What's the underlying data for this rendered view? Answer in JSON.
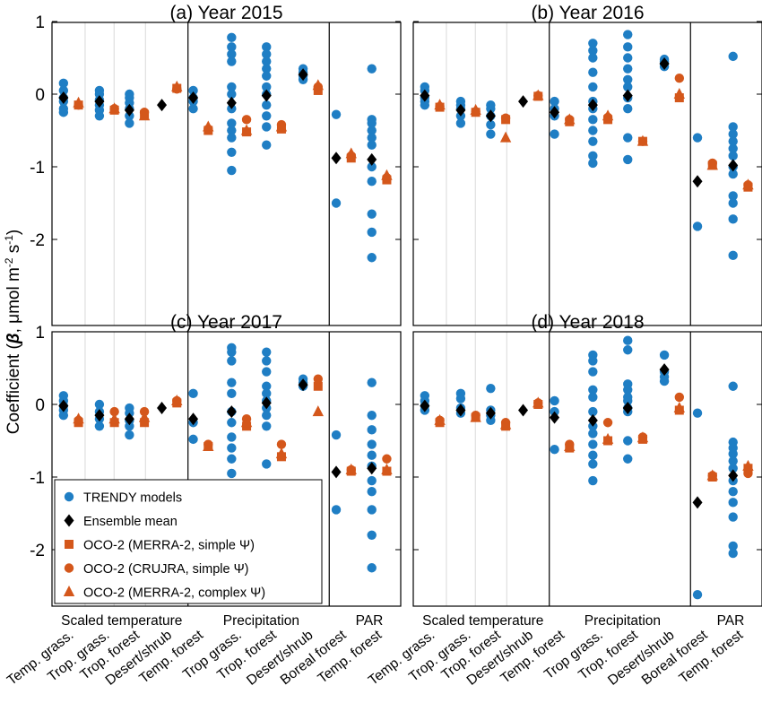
{
  "figure": {
    "ylabel": "Coefficient (β, μmol m⁻² s⁻¹)",
    "ylabel_main": "Coefficient (",
    "ylabel_beta": "β",
    "ylabel_unit": ", μmol m",
    "ylabel_sup1": "-2",
    "ylabel_s": " s",
    "ylabel_sup2": "-1",
    "ylabel_close": ")",
    "yticks": [
      "1",
      "0",
      "-1",
      "-2"
    ],
    "groups": [
      "Scaled temperature",
      "Precipitation",
      "PAR"
    ],
    "categories": [
      "Temp. grass.",
      "Trop. grass.",
      "Trop. forest",
      "Desert/shrub",
      "Temp. forest",
      "Trop grass.",
      "Trop. forest",
      "Desert/shrub",
      "Boreal forest",
      "Temp. forest"
    ],
    "colors": {
      "trendy": "#1f7ec4",
      "ensemble": "#000000",
      "oco": "#d4571b"
    }
  },
  "legend": {
    "items": [
      {
        "label": "TRENDY models",
        "marker": "circle",
        "color": "#1f7ec4"
      },
      {
        "label": "Ensemble mean",
        "marker": "diamond",
        "color": "#000000"
      },
      {
        "label": "OCO-2 (MERRA-2, simple Ψ)",
        "marker": "square",
        "color": "#d4571b"
      },
      {
        "label": "OCO-2 (CRUJRA, simple Ψ)",
        "marker": "circle",
        "color": "#d4571b"
      },
      {
        "label": "OCO-2 (MERRA-2, complex Ψ)",
        "marker": "triangle",
        "color": "#d4571b"
      }
    ]
  },
  "chart_data": [
    {
      "type": "scatter",
      "title": "(a) Year 2015",
      "ylim": [
        -2.8,
        1
      ],
      "trendy": [
        [
          0.15,
          0.05,
          -0.05,
          -0.1,
          -0.2,
          -0.25
        ],
        [
          0.05,
          0.0,
          -0.08,
          -0.15,
          -0.22,
          -0.3
        ],
        [
          0.0,
          -0.05,
          -0.12,
          -0.2,
          -0.3,
          -0.4
        ],
        [],
        [
          0.05,
          -0.05,
          -0.1,
          -0.2
        ],
        [
          0.78,
          0.65,
          0.55,
          0.45,
          0.1,
          0.0,
          -0.2,
          -0.4,
          -0.5,
          -0.6,
          -0.8,
          -1.05
        ],
        [
          0.65,
          0.55,
          0.45,
          0.35,
          0.25,
          0.1,
          0.0,
          -0.15,
          -0.3,
          -0.45,
          -0.7
        ],
        [
          0.35,
          0.3,
          0.25,
          0.2
        ],
        [
          -0.28,
          -1.5
        ],
        [
          0.35,
          -0.35,
          -0.4,
          -0.5,
          -0.6,
          -0.7,
          -1.0,
          -1.2,
          -1.65,
          -1.9,
          -2.25
        ]
      ],
      "ensemble": [
        -0.05,
        -0.1,
        -0.22,
        -0.15,
        -0.05,
        -0.12,
        -0.02,
        0.27,
        -0.88,
        -0.9
      ],
      "oco_merra_simple": [
        -0.15,
        -0.22,
        -0.28,
        0.08,
        -0.5,
        -0.52,
        -0.48,
        0.05,
        -0.88,
        -1.18
      ],
      "oco_crujra_simple": [
        -0.15,
        -0.2,
        -0.25,
        0.07,
        -0.48,
        -0.35,
        -0.42,
        0.1,
        -0.85,
        -1.15
      ],
      "oco_merra_complex": [
        -0.12,
        -0.2,
        -0.3,
        0.1,
        -0.45,
        -0.5,
        -0.45,
        0.12,
        -0.82,
        -1.12
      ]
    },
    {
      "type": "scatter",
      "title": "(b) Year 2016",
      "ylim": [
        -2.8,
        1
      ],
      "trendy": [
        [
          0.1,
          0.05,
          -0.05,
          -0.1,
          -0.15
        ],
        [
          -0.1,
          -0.15,
          -0.2,
          -0.3,
          -0.4
        ],
        [
          -0.15,
          -0.2,
          -0.3,
          -0.42,
          -0.55
        ],
        [],
        [
          -0.1,
          -0.2,
          -0.3,
          -0.55
        ],
        [
          0.7,
          0.6,
          0.5,
          0.3,
          0.1,
          -0.1,
          -0.2,
          -0.35,
          -0.5,
          -0.65,
          -0.85,
          -0.95
        ],
        [
          0.82,
          0.65,
          0.5,
          0.35,
          0.2,
          0.1,
          -0.05,
          -0.2,
          -0.6,
          -0.9
        ],
        [
          0.48,
          0.45,
          0.42,
          0.38
        ],
        [
          -0.6,
          -1.82
        ],
        [
          0.52,
          -0.45,
          -0.55,
          -0.65,
          -0.75,
          -0.85,
          -1.0,
          -1.1,
          -1.4,
          -1.5,
          -1.72,
          -2.22
        ]
      ],
      "ensemble": [
        -0.02,
        -0.22,
        -0.3,
        -0.1,
        -0.25,
        -0.15,
        -0.02,
        0.42,
        -1.2,
        -0.98
      ],
      "oco_merra_simple": [
        -0.18,
        -0.25,
        -0.35,
        -0.03,
        -0.38,
        -0.35,
        -0.65,
        -0.05,
        -0.98,
        -1.28
      ],
      "oco_crujra_simple": [
        -0.17,
        -0.24,
        -0.33,
        -0.02,
        -0.35,
        -0.32,
        -0.65,
        0.22,
        -0.95,
        -1.25
      ],
      "oco_merra_complex": [
        -0.15,
        -0.22,
        -0.6,
        -0.02,
        -0.35,
        -0.3,
        -0.65,
        0.0,
        -0.98,
        -1.25
      ]
    },
    {
      "type": "scatter",
      "title": "(c) Year 2017",
      "ylim": [
        -2.8,
        1
      ],
      "trendy": [
        [
          0.12,
          0.05,
          -0.02,
          -0.08,
          -0.15
        ],
        [
          0.0,
          -0.1,
          -0.2,
          -0.3
        ],
        [
          -0.05,
          -0.12,
          -0.22,
          -0.3,
          -0.42
        ],
        [],
        [
          0.15,
          -0.25,
          -0.48
        ],
        [
          0.78,
          0.72,
          0.6,
          0.3,
          0.15,
          -0.1,
          -0.25,
          -0.45,
          -0.6,
          -0.75,
          -0.95
        ],
        [
          0.72,
          0.6,
          0.45,
          0.25,
          0.15,
          0.05,
          -0.05,
          -0.15,
          -0.3,
          -0.82
        ],
        [
          0.35,
          0.3,
          0.25
        ],
        [
          -0.42,
          -1.45
        ],
        [
          0.3,
          -0.15,
          -0.35,
          -0.55,
          -0.7,
          -0.85,
          -1.05,
          -1.2,
          -1.45,
          -1.8,
          -2.25
        ]
      ],
      "ensemble": [
        -0.02,
        -0.15,
        -0.2,
        -0.05,
        -0.2,
        -0.1,
        0.02,
        0.27,
        -0.93,
        -0.88
      ],
      "oco_merra_simple": [
        -0.25,
        -0.25,
        -0.25,
        0.02,
        -0.58,
        -0.3,
        -0.72,
        0.25,
        -0.92,
        -0.92
      ],
      "oco_crujra_simple": [
        -0.22,
        -0.1,
        -0.1,
        0.05,
        -0.55,
        -0.2,
        -0.55,
        0.35,
        -0.9,
        -0.75
      ],
      "oco_merra_complex": [
        -0.2,
        -0.2,
        -0.18,
        0.05,
        -0.58,
        -0.25,
        -0.68,
        -0.1,
        -0.9,
        -0.9
      ]
    },
    {
      "type": "scatter",
      "title": "(d) Year 2018",
      "ylim": [
        -2.8,
        1
      ],
      "trendy": [
        [
          0.12,
          0.05,
          -0.02,
          -0.08
        ],
        [
          0.15,
          0.08,
          -0.05,
          -0.12
        ],
        [
          0.22,
          -0.08,
          -0.15,
          -0.22
        ],
        [],
        [
          0.05,
          -0.1,
          -0.62
        ],
        [
          0.68,
          0.6,
          0.45,
          0.2,
          0.1,
          -0.1,
          -0.3,
          -0.4,
          -0.55,
          -0.7,
          -0.82,
          -1.05
        ],
        [
          0.88,
          0.75,
          0.28,
          0.2,
          0.1,
          0.05,
          -0.05,
          -0.1,
          -0.5,
          -0.75
        ],
        [
          0.68,
          0.45,
          0.38,
          0.32
        ],
        [
          -0.12,
          -2.62
        ],
        [
          0.25,
          -0.52,
          -0.6,
          -0.68,
          -0.78,
          -0.88,
          -1.05,
          -1.2,
          -1.35,
          -1.55,
          -1.95,
          -2.05
        ]
      ],
      "ensemble": [
        -0.02,
        -0.08,
        -0.12,
        -0.08,
        -0.18,
        -0.22,
        -0.05,
        0.48,
        -1.35,
        -0.98
      ],
      "oco_merra_simple": [
        -0.25,
        -0.18,
        -0.3,
        0.0,
        -0.6,
        -0.5,
        -0.48,
        -0.08,
        -1.0,
        -0.88
      ],
      "oco_crujra_simple": [
        -0.22,
        -0.15,
        -0.25,
        0.02,
        -0.55,
        -0.25,
        -0.45,
        0.1,
        -0.98,
        -0.95
      ],
      "oco_merra_complex": [
        -0.22,
        -0.18,
        -0.28,
        0.02,
        -0.58,
        -0.48,
        -0.46,
        -0.05,
        -0.98,
        -0.85
      ]
    }
  ]
}
